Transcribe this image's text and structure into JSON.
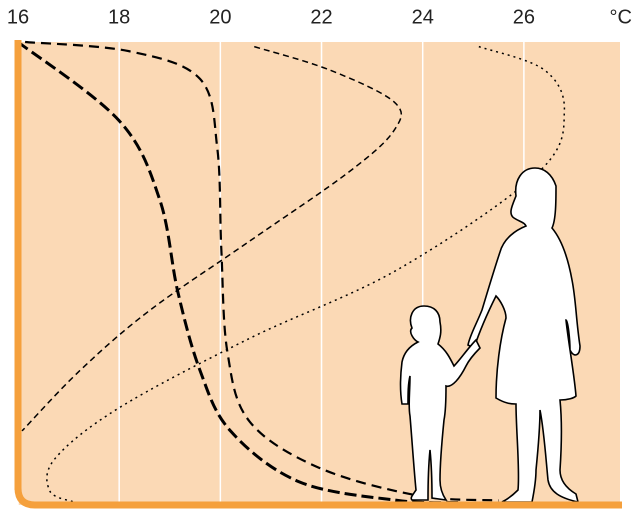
{
  "chart_data": {
    "type": "line",
    "x_unit": "°C",
    "xlim": [
      16,
      27.9
    ],
    "xticks": [
      16,
      18,
      20,
      22,
      24,
      26
    ],
    "ylim": [
      0,
      1
    ],
    "grid": true,
    "background": "#fbd9b5",
    "axis_color": "#f5a03c",
    "series": [
      {
        "color": "#000000",
        "width": 3,
        "dash": "12 5",
        "x": [
          16,
          18,
          18.8,
          19.16,
          19.6,
          20.2,
          21.56,
          23.5,
          24.7
        ],
        "values": [
          1,
          0.83,
          0.66,
          0.46,
          0.29,
          0.16,
          0.05,
          0.01,
          0.005
        ]
      },
      {
        "color": "#000000",
        "width": 2.2,
        "dash": "10 6",
        "x": [
          16.14,
          18.2,
          19.6,
          19.94,
          20.02,
          20.14,
          20.58,
          21.96,
          23.93,
          25.5
        ],
        "values": [
          1,
          0.98,
          0.92,
          0.77,
          0.55,
          0.33,
          0.18,
          0.08,
          0.02,
          0.01
        ]
      },
      {
        "color": "#000000",
        "width": 1.5,
        "dash": "6 4",
        "x": [
          20.67,
          22.15,
          23.44,
          23.44,
          22.55,
          20.58,
          18.6,
          17.22,
          16.08
        ],
        "values": [
          0.99,
          0.94,
          0.87,
          0.81,
          0.72,
          0.57,
          0.42,
          0.29,
          0.16
        ]
      },
      {
        "color": "#000000",
        "width": 1.5,
        "dash": "2 4",
        "x": [
          25.11,
          26.4,
          26.8,
          26.3,
          23.53,
          20.58,
          18.0,
          16.73,
          16.63,
          17.12
        ],
        "values": [
          0.99,
          0.94,
          0.85,
          0.72,
          0.51,
          0.36,
          0.21,
          0.1,
          0.03,
          0.006
        ]
      }
    ]
  }
}
